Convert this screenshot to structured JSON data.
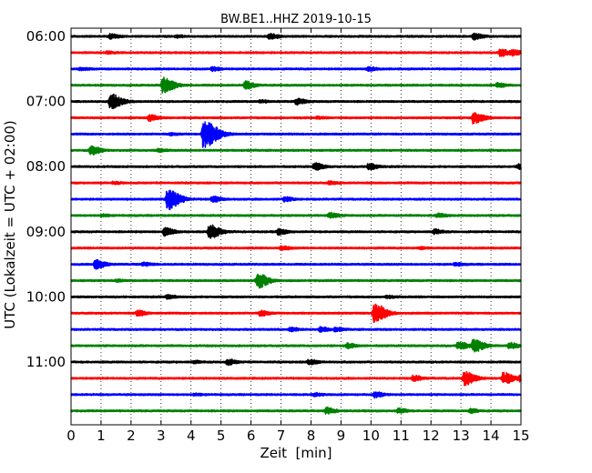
{
  "chart_data": {
    "type": "line",
    "title": "BW.BE1..HHZ 2019-10-15",
    "xlabel": "Zeit  [min]",
    "ylabel": "UTC (Lokalzeit = UTC + 02:00)",
    "xlim": [
      0,
      15
    ],
    "x_ticks": [
      0,
      1,
      2,
      3,
      4,
      5,
      6,
      7,
      8,
      9,
      10,
      11,
      12,
      13,
      14,
      15
    ],
    "x_tick_labels": [
      "0",
      "1",
      "2",
      "3",
      "4",
      "5",
      "6",
      "7",
      "8",
      "9",
      "10",
      "11",
      "12",
      "13",
      "14",
      "15"
    ],
    "grid": "vertical dotted",
    "trace_colors": [
      "#000000",
      "#ff0000",
      "#0000ff",
      "#008000"
    ],
    "traces": [
      {
        "start": "06:00",
        "y_label": "06:00",
        "events": [
          [
            1.3,
            0.25
          ],
          [
            3.5,
            0.12
          ],
          [
            6.6,
            0.3
          ],
          [
            13.4,
            0.35
          ]
        ]
      },
      {
        "start": "06:15",
        "y_label": "",
        "events": [
          [
            1.2,
            0.12
          ],
          [
            14.3,
            0.4
          ],
          [
            14.7,
            0.3
          ]
        ]
      },
      {
        "start": "06:30",
        "y_label": "",
        "events": [
          [
            0.3,
            0.15
          ],
          [
            4.7,
            0.22
          ],
          [
            9.9,
            0.2
          ]
        ]
      },
      {
        "start": "06:45",
        "y_label": "",
        "events": [
          [
            3.05,
            0.9
          ],
          [
            5.8,
            0.45
          ],
          [
            14.2,
            0.25
          ]
        ]
      },
      {
        "start": "07:00",
        "y_label": "07:00",
        "events": [
          [
            1.3,
            0.9
          ],
          [
            7.5,
            0.35
          ],
          [
            6.3,
            0.12
          ]
        ]
      },
      {
        "start": "07:15",
        "y_label": "",
        "events": [
          [
            2.6,
            0.35
          ],
          [
            13.4,
            0.65
          ],
          [
            8.2,
            0.1
          ]
        ]
      },
      {
        "start": "07:30",
        "y_label": "",
        "events": [
          [
            4.4,
            1.6
          ],
          [
            3.3,
            0.12
          ]
        ]
      },
      {
        "start": "07:45",
        "y_label": "",
        "events": [
          [
            0.65,
            0.5
          ],
          [
            2.9,
            0.15
          ]
        ]
      },
      {
        "start": "08:00",
        "y_label": "08:00",
        "events": [
          [
            8.1,
            0.4
          ],
          [
            9.9,
            0.35
          ],
          [
            14.9,
            0.3
          ]
        ]
      },
      {
        "start": "08:15",
        "y_label": "",
        "events": [
          [
            1.4,
            0.12
          ],
          [
            8.6,
            0.15
          ]
        ]
      },
      {
        "start": "08:30",
        "y_label": "",
        "events": [
          [
            3.2,
            1.2
          ],
          [
            4.7,
            0.3
          ],
          [
            7.1,
            0.25
          ]
        ]
      },
      {
        "start": "08:45",
        "y_label": "",
        "events": [
          [
            8.6,
            0.3
          ],
          [
            12.2,
            0.2
          ],
          [
            1.0,
            0.12
          ]
        ]
      },
      {
        "start": "09:00",
        "y_label": "09:00",
        "events": [
          [
            3.1,
            0.45
          ],
          [
            4.6,
            0.8
          ],
          [
            6.9,
            0.3
          ],
          [
            12.1,
            0.25
          ]
        ]
      },
      {
        "start": "09:15",
        "y_label": "",
        "events": [
          [
            7.0,
            0.2
          ],
          [
            11.6,
            0.1
          ]
        ]
      },
      {
        "start": "09:30",
        "y_label": "",
        "events": [
          [
            0.8,
            0.5
          ],
          [
            2.4,
            0.2
          ],
          [
            12.8,
            0.15
          ]
        ]
      },
      {
        "start": "09:45",
        "y_label": "",
        "events": [
          [
            6.2,
            0.85
          ],
          [
            1.5,
            0.1
          ]
        ]
      },
      {
        "start": "10:00",
        "y_label": "10:00",
        "events": [
          [
            3.2,
            0.2
          ],
          [
            10.5,
            0.12
          ]
        ]
      },
      {
        "start": "10:15",
        "y_label": "",
        "events": [
          [
            2.2,
            0.3
          ],
          [
            6.3,
            0.3
          ],
          [
            10.1,
            1.05
          ]
        ]
      },
      {
        "start": "10:30",
        "y_label": "",
        "events": [
          [
            7.3,
            0.22
          ],
          [
            8.3,
            0.25
          ],
          [
            8.8,
            0.2
          ]
        ]
      },
      {
        "start": "10:45",
        "y_label": "",
        "events": [
          [
            9.2,
            0.25
          ],
          [
            12.9,
            0.45
          ],
          [
            13.4,
            0.7
          ],
          [
            14.6,
            0.35
          ]
        ]
      },
      {
        "start": "11:00",
        "y_label": "11:00",
        "events": [
          [
            5.2,
            0.3
          ],
          [
            7.9,
            0.3
          ],
          [
            4.1,
            0.12
          ]
        ]
      },
      {
        "start": "11:15",
        "y_label": "",
        "events": [
          [
            11.4,
            0.3
          ],
          [
            13.1,
            0.8
          ],
          [
            14.4,
            0.65
          ],
          [
            14.95,
            0.35
          ]
        ]
      },
      {
        "start": "11:30",
        "y_label": "",
        "events": [
          [
            8.1,
            0.15
          ],
          [
            10.1,
            0.3
          ],
          [
            4.1,
            0.1
          ]
        ]
      },
      {
        "start": "11:45",
        "y_label": "",
        "events": [
          [
            8.5,
            0.35
          ],
          [
            10.9,
            0.25
          ],
          [
            13.3,
            0.22
          ]
        ]
      }
    ]
  }
}
